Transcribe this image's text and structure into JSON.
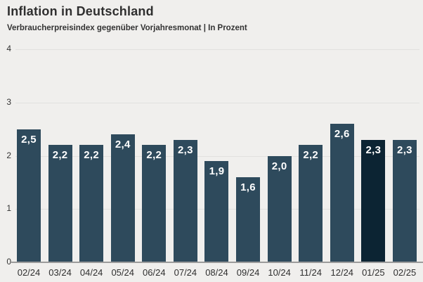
{
  "header": {
    "title": "Inflation in Deutschland",
    "subtitle": "Verbraucherpreisindex gegenüber Vorjahresmonat | In Prozent"
  },
  "chart_data": {
    "type": "bar",
    "title": "Inflation in Deutschland",
    "subtitle": "Verbraucherpreisindex gegenüber Vorjahresmonat | In Prozent",
    "categories": [
      "02/24",
      "03/24",
      "04/24",
      "05/24",
      "06/24",
      "07/24",
      "08/24",
      "09/24",
      "10/24",
      "11/24",
      "12/24",
      "01/25",
      "02/25"
    ],
    "values": [
      2.5,
      2.2,
      2.2,
      2.4,
      2.2,
      2.3,
      1.9,
      1.6,
      2.0,
      2.2,
      2.6,
      2.3,
      2.3
    ],
    "value_labels": [
      "2,5",
      "2,2",
      "2,2",
      "2,4",
      "2,2",
      "2,3",
      "1,9",
      "1,6",
      "2,0",
      "2,2",
      "2,6",
      "2,3",
      "2,3"
    ],
    "xlabel": "",
    "ylabel": "",
    "ylim": [
      0,
      4
    ],
    "yticks": [
      0,
      1,
      2,
      3,
      4
    ],
    "grid": true,
    "legend": false,
    "highlight_index": 11,
    "colors": {
      "background": "#f0efed",
      "bar": "#2e4a5c",
      "bar_highlight": "#0c2433",
      "gridline": "#e1e1df",
      "baseline": "#9b9b9b",
      "bar_value_text": "#ffffff",
      "axis_text": "#333333",
      "title_text": "#2f2f2f"
    }
  }
}
